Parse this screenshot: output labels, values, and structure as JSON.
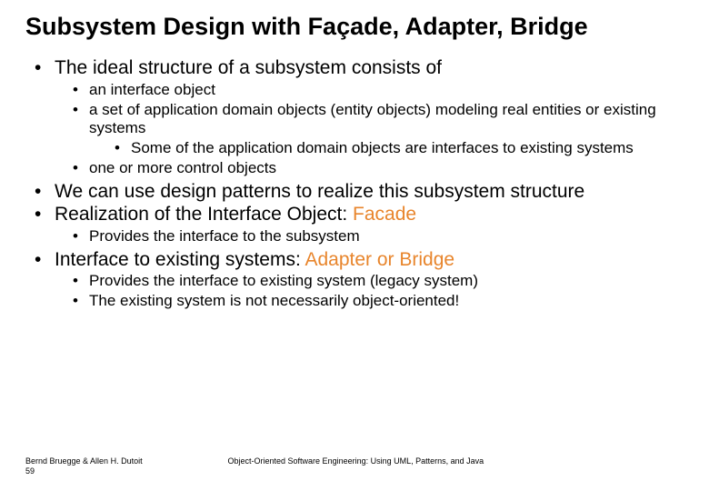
{
  "colors": {
    "highlight": "#e8852c",
    "text": "#000000",
    "background": "#ffffff"
  },
  "title": "Subsystem Design with Façade, Adapter, Bridge",
  "b1": "The ideal structure of a subsystem consists of",
  "b1a": "an interface object",
  "b1b": "a set of application domain objects (entity objects) modeling real entities or existing systems",
  "b1b1": "Some of the application domain objects are interfaces to existing systems",
  "b1c": "one or more  control objects",
  "b2": "We can use design patterns to realize this subsystem structure",
  "b3_pre": "Realization of the Interface Object: ",
  "b3_hl": "Facade",
  "b3a": "Provides the interface to  the subsystem",
  "b4_pre": "Interface to existing systems: ",
  "b4_hl": "Adapter or Bridge",
  "b4a": "Provides the interface to  existing system (legacy system)",
  "b4b": "The existing system is not necessarily object-oriented!",
  "footer_author": "Bernd Bruegge & Allen H. Dutoit",
  "footer_page": "59",
  "footer_book": "Object-Oriented Software Engineering: Using UML, Patterns, and Java"
}
